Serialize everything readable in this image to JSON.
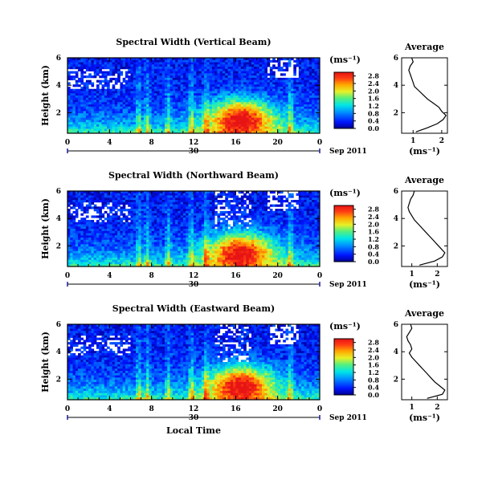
{
  "chart_data": [
    {
      "type": "heatmap",
      "title": "Spectral Width (Vertical Beam)",
      "ylabel": "Height (km)",
      "xlabel": "",
      "date_label": "Sep 2011",
      "day_label": "30",
      "x_ticks": [
        "0",
        "4",
        "8",
        "12",
        "16",
        "20",
        "0"
      ],
      "y_ticks": [
        "2",
        "4",
        "6"
      ],
      "xlim": [
        0,
        24
      ],
      "ylim": [
        0.5,
        6
      ],
      "colorbar": {
        "unit": "(ms⁻¹)",
        "ticks": [
          "0.0",
          "0.4",
          "0.8",
          "1.2",
          "1.6",
          "2.0",
          "2.4",
          "2.8"
        ],
        "range": [
          0,
          3.0
        ]
      },
      "profile": {
        "title": "Average",
        "xlabel": "(ms⁻¹)",
        "x_ticks": [
          "1",
          "2"
        ],
        "y_ticks": [
          "2",
          "4",
          "6"
        ],
        "xlim": [
          0.6,
          2.2
        ],
        "ylim": [
          0.5,
          6
        ],
        "height_km": [
          0.6,
          0.9,
          1.2,
          1.5,
          1.8,
          2.1,
          2.4,
          2.7,
          3.0,
          3.3,
          3.6,
          3.9,
          4.2,
          4.5,
          4.8,
          5.1,
          5.4,
          5.7,
          6.0
        ],
        "mean_width": [
          1.1,
          1.5,
          1.85,
          2.05,
          2.15,
          2.0,
          1.9,
          1.7,
          1.5,
          1.35,
          1.2,
          1.05,
          1.0,
          0.95,
          0.9,
          0.85,
          0.9,
          1.0,
          0.95
        ]
      }
    },
    {
      "type": "heatmap",
      "title": "Spectral Width (Northward Beam)",
      "ylabel": "Height (km)",
      "xlabel": "",
      "date_label": "Sep 2011",
      "day_label": "30",
      "x_ticks": [
        "0",
        "4",
        "8",
        "12",
        "16",
        "20",
        "0"
      ],
      "y_ticks": [
        "2",
        "4",
        "6"
      ],
      "xlim": [
        0,
        24
      ],
      "ylim": [
        0.5,
        6
      ],
      "colorbar": {
        "unit": "(ms⁻¹)",
        "ticks": [
          "0.0",
          "0.4",
          "0.8",
          "1.2",
          "1.6",
          "2.0",
          "2.4",
          "2.8"
        ],
        "range": [
          0,
          3.0
        ]
      },
      "profile": {
        "title": "Average",
        "xlabel": "(ms⁻¹)",
        "x_ticks": [
          "1",
          "2"
        ],
        "y_ticks": [
          "2",
          "4",
          "6"
        ],
        "xlim": [
          0.6,
          2.4
        ],
        "ylim": [
          0.5,
          6
        ],
        "height_km": [
          0.6,
          0.9,
          1.2,
          1.5,
          1.8,
          2.1,
          2.4,
          2.7,
          3.0,
          3.3,
          3.6,
          3.9,
          4.2,
          4.5,
          4.8,
          5.1,
          5.4,
          5.7,
          6.0
        ],
        "mean_width": [
          1.3,
          1.9,
          2.2,
          2.3,
          2.15,
          2.0,
          1.85,
          1.7,
          1.55,
          1.4,
          1.25,
          1.1,
          1.0,
          0.9,
          0.85,
          0.9,
          0.95,
          1.05,
          1.1
        ]
      }
    },
    {
      "type": "heatmap",
      "title": "Spectral Width (Eastward Beam)",
      "ylabel": "Height (km)",
      "xlabel": "Local Time",
      "date_label": "Sep 2011",
      "day_label": "30",
      "x_ticks": [
        "0",
        "4",
        "8",
        "12",
        "16",
        "20",
        "0"
      ],
      "y_ticks": [
        "2",
        "4",
        "6"
      ],
      "xlim": [
        0,
        24
      ],
      "ylim": [
        0.5,
        6
      ],
      "colorbar": {
        "unit": "(ms⁻¹)",
        "ticks": [
          "0.0",
          "0.4",
          "0.8",
          "1.2",
          "1.6",
          "2.0",
          "2.4",
          "2.8"
        ],
        "range": [
          0,
          3.0
        ]
      },
      "profile": {
        "title": "Average",
        "xlabel": "(ms⁻¹)",
        "x_ticks": [
          "1",
          "2"
        ],
        "y_ticks": [
          "2",
          "4",
          "6"
        ],
        "xlim": [
          0.6,
          2.4
        ],
        "ylim": [
          0.5,
          6
        ],
        "height_km": [
          0.6,
          0.9,
          1.2,
          1.5,
          1.8,
          2.1,
          2.4,
          2.7,
          3.0,
          3.3,
          3.6,
          3.9,
          4.2,
          4.5,
          4.8,
          5.1,
          5.4,
          5.7,
          6.0
        ],
        "mean_width": [
          1.6,
          2.2,
          2.3,
          2.1,
          1.9,
          1.75,
          1.6,
          1.45,
          1.3,
          1.15,
          1.0,
          0.9,
          1.0,
          0.95,
          0.85,
          0.8,
          0.9,
          1.0,
          0.95
        ]
      }
    }
  ]
}
